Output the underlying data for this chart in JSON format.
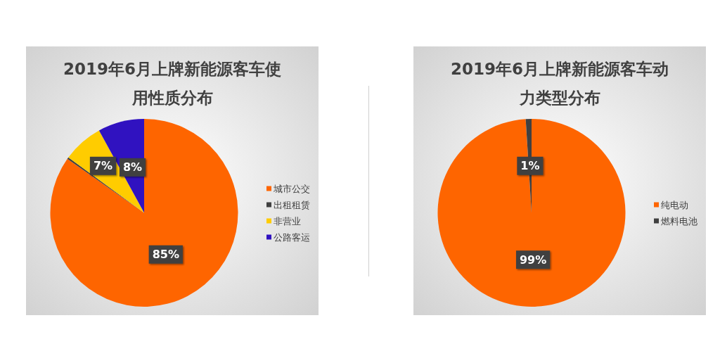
{
  "chart_data": [
    {
      "type": "pie",
      "title": "2019年6月上牌新能源客车使用性质分布",
      "categories": [
        "城市公交",
        "出租租赁",
        "非营业",
        "公路客运"
      ],
      "values": [
        85,
        0.3,
        7,
        8
      ],
      "colors": [
        "#fe6500",
        "#404040",
        "#ffcc00",
        "#3012c0"
      ],
      "value_labels": [
        "85%",
        null,
        "7%",
        "8%"
      ],
      "legend": "right"
    },
    {
      "type": "pie",
      "title": "2019年6月上牌新能源客车动力类型分布",
      "categories": [
        "纯电动",
        "燃料电池"
      ],
      "values": [
        99,
        1
      ],
      "colors": [
        "#fe6500",
        "#404040"
      ],
      "value_labels": [
        "99%",
        "1%"
      ],
      "legend": "right"
    }
  ]
}
